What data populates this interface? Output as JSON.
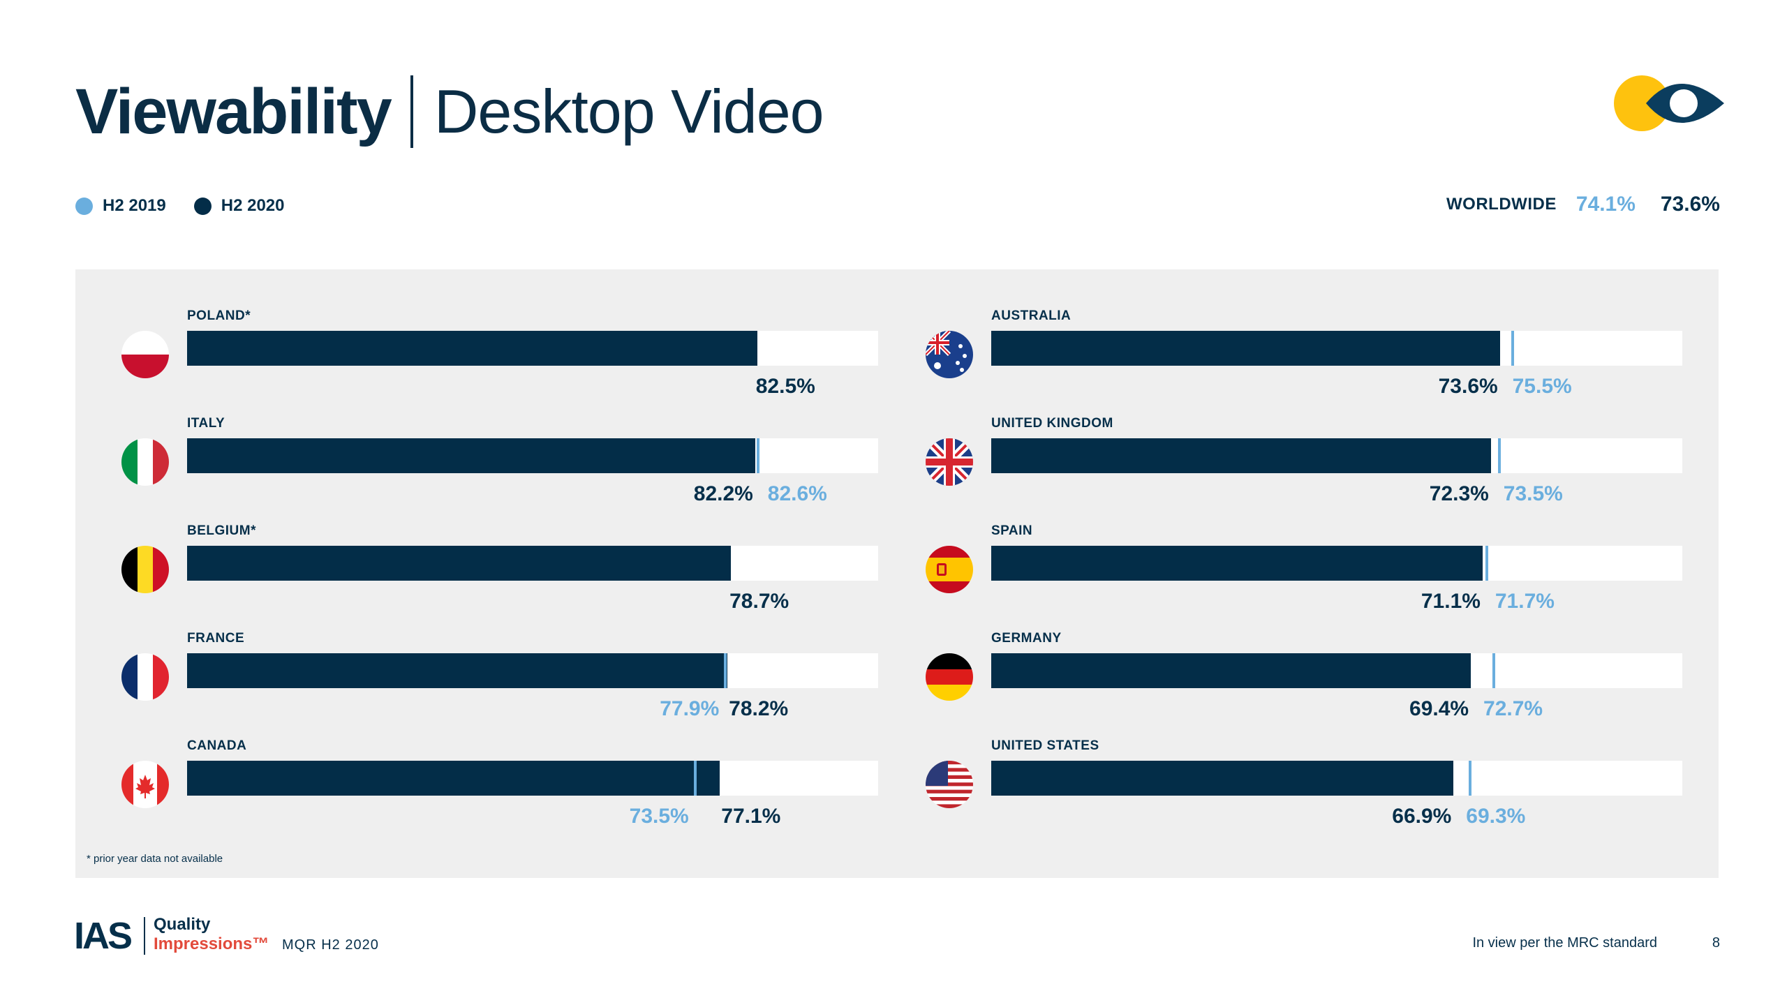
{
  "header": {
    "title": "Viewability",
    "subtitle": "Desktop Video"
  },
  "legend": {
    "prev_label": "H2 2019",
    "curr_label": "H2 2020",
    "prev_color": "#6aaede",
    "curr_color": "#032d48"
  },
  "worldwide": {
    "label": "WORLDWIDE",
    "prev": "74.1%",
    "curr": "73.6%"
  },
  "chart_data": {
    "type": "bar",
    "orientation": "horizontal",
    "xlim": [
      0,
      100
    ],
    "series": [
      {
        "name": "H2 2020",
        "role": "bar"
      },
      {
        "name": "H2 2019",
        "role": "marker"
      }
    ],
    "countries": [
      {
        "name": "POLAND*",
        "flag": "poland-flag-icon",
        "curr": 82.5,
        "prev": null,
        "curr_label": "82.5%",
        "prev_label": ""
      },
      {
        "name": "ITALY",
        "flag": "italy-flag-icon",
        "curr": 82.2,
        "prev": 82.6,
        "curr_label": "82.2%",
        "prev_label": "82.6%"
      },
      {
        "name": "BELGIUM*",
        "flag": "belgium-flag-icon",
        "curr": 78.7,
        "prev": null,
        "curr_label": "78.7%",
        "prev_label": ""
      },
      {
        "name": "FRANCE",
        "flag": "france-flag-icon",
        "curr": 78.2,
        "prev": 77.9,
        "curr_label": "78.2%",
        "prev_label": "77.9%"
      },
      {
        "name": "CANADA",
        "flag": "canada-flag-icon",
        "curr": 77.1,
        "prev": 73.5,
        "curr_label": "77.1%",
        "prev_label": "73.5%"
      },
      {
        "name": "AUSTRALIA",
        "flag": "australia-flag-icon",
        "curr": 73.6,
        "prev": 75.5,
        "curr_label": "73.6%",
        "prev_label": "75.5%"
      },
      {
        "name": "UNITED KINGDOM",
        "flag": "uk-flag-icon",
        "curr": 72.3,
        "prev": 73.5,
        "curr_label": "72.3%",
        "prev_label": "73.5%"
      },
      {
        "name": "SPAIN",
        "flag": "spain-flag-icon",
        "curr": 71.1,
        "prev": 71.7,
        "curr_label": "71.1%",
        "prev_label": "71.7%"
      },
      {
        "name": "GERMANY",
        "flag": "germany-flag-icon",
        "curr": 69.4,
        "prev": 72.7,
        "curr_label": "69.4%",
        "prev_label": "72.7%"
      },
      {
        "name": "UNITED STATES",
        "flag": "usa-flag-icon",
        "curr": 66.9,
        "prev": 69.3,
        "curr_label": "66.9%",
        "prev_label": "69.3%"
      }
    ]
  },
  "footnote": "* prior year data not available",
  "footer": {
    "brand": "IAS",
    "quality": "Quality",
    "impressions": "Impressions™",
    "report": "MQR H2 2020",
    "standard": "In view per the MRC standard",
    "page": "8"
  }
}
